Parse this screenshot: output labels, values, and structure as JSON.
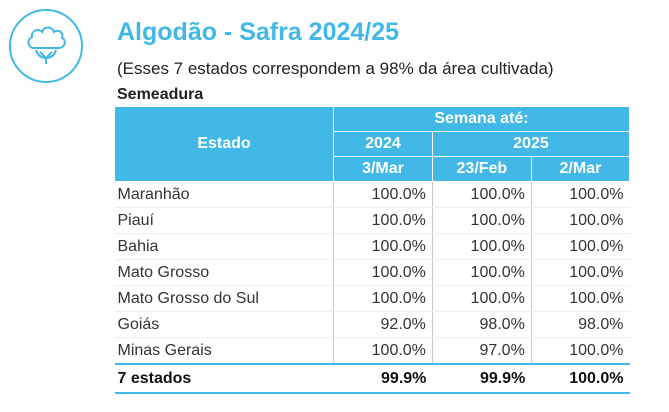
{
  "header": {
    "title": "Algodão - Safra 2024/25",
    "subtitle": "(Esses 7 estados correspondem a 98% da área cultivada)",
    "section": "Semeadura",
    "logo_icon": "cotton-flower-icon"
  },
  "table": {
    "col_estado": "Estado",
    "group_header": "Semana até:",
    "year_2024": "2024",
    "year_2025": "2025",
    "weeks": [
      "3/Mar",
      "23/Feb",
      "2/Mar"
    ],
    "rows": [
      {
        "estado": "Maranhão",
        "v": [
          "100.0%",
          "100.0%",
          "100.0%"
        ]
      },
      {
        "estado": "Piauí",
        "v": [
          "100.0%",
          "100.0%",
          "100.0%"
        ]
      },
      {
        "estado": "Bahia",
        "v": [
          "100.0%",
          "100.0%",
          "100.0%"
        ]
      },
      {
        "estado": "Mato Grosso",
        "v": [
          "100.0%",
          "100.0%",
          "100.0%"
        ]
      },
      {
        "estado": "Mato Grosso do Sul",
        "v": [
          "100.0%",
          "100.0%",
          "100.0%"
        ]
      },
      {
        "estado": "Goiás",
        "v": [
          "92.0%",
          "98.0%",
          "98.0%"
        ]
      },
      {
        "estado": "Minas Gerais",
        "v": [
          "100.0%",
          "97.0%",
          "100.0%"
        ]
      }
    ],
    "total": {
      "estado": "7 estados",
      "v": [
        "99.9%",
        "99.9%",
        "100.0%"
      ]
    }
  },
  "colors": {
    "accent": "#41b8e6"
  }
}
